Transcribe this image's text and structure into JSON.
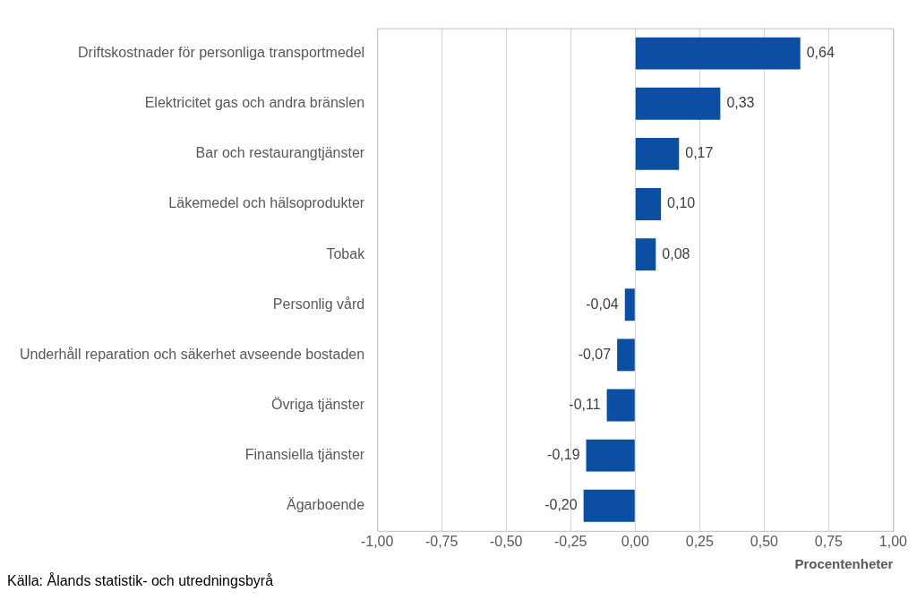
{
  "chart_data": {
    "type": "bar",
    "orientation": "horizontal",
    "categories": [
      "Driftskostnader för personliga transportmedel",
      "Elektricitet gas och andra bränslen",
      "Bar och restaurangtjänster",
      "Läkemedel och hälsoprodukter",
      "Tobak",
      "Personlig vård",
      "Underhåll reparation och säkerhet avseende bostaden",
      "Övriga tjänster",
      "Finansiella tjänster",
      "Ägarboende"
    ],
    "values": [
      0.64,
      0.33,
      0.17,
      0.1,
      0.08,
      -0.04,
      -0.07,
      -0.11,
      -0.19,
      -0.2
    ],
    "value_labels": [
      "0,64",
      "0,33",
      "0,17",
      "0,10",
      "0,08",
      "-0,04",
      "-0,07",
      "-0,11",
      "-0,19",
      "-0,20"
    ],
    "color": "#0b4ea2",
    "xlim": [
      -1,
      1
    ],
    "xticks": [
      {
        "value": -1,
        "label": "-1,00"
      },
      {
        "value": -0.75,
        "label": "-0,75"
      },
      {
        "value": -0.5,
        "label": "-0,50"
      },
      {
        "value": -0.25,
        "label": "-0,25"
      },
      {
        "value": 0,
        "label": "0,00"
      },
      {
        "value": 0.25,
        "label": "0,25"
      },
      {
        "value": 0.5,
        "label": "0,50"
      },
      {
        "value": 0.75,
        "label": "0,75"
      },
      {
        "value": 1,
        "label": "1,00"
      }
    ],
    "xlabel": "Procentenheter",
    "grid": "x",
    "legend": false,
    "annotations": [
      "Källa: Ålands statistik- och utredningsbyrå"
    ]
  }
}
